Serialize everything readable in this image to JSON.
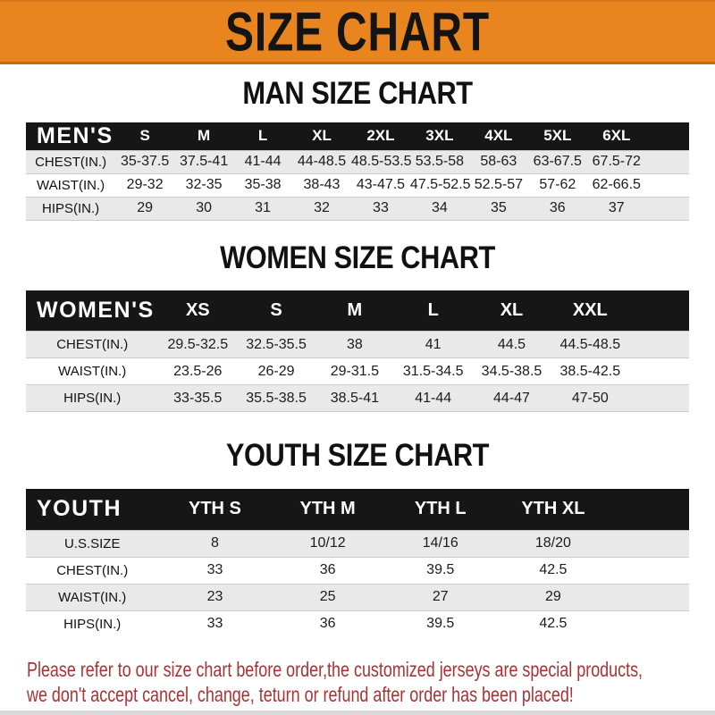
{
  "banner": {
    "title": "SIZE CHART"
  },
  "sections": [
    {
      "title": "MAN SIZE CHART",
      "header_label": "MEN'S",
      "columns": [
        "S",
        "M",
        "L",
        "XL",
        "2XL",
        "3XL",
        "4XL",
        "5XL",
        "6XL"
      ],
      "rows": [
        {
          "label": "CHEST(IN.)",
          "values": [
            "35-37.5",
            "37.5-41",
            "41-44",
            "44-48.5",
            "48.5-53.5",
            "53.5-58",
            "58-63",
            "63-67.5",
            "67.5-72"
          ]
        },
        {
          "label": "WAIST(IN.)",
          "values": [
            "29-32",
            "32-35",
            "35-38",
            "38-43",
            "43-47.5",
            "47.5-52.5",
            "52.5-57",
            "57-62",
            "62-66.5"
          ]
        },
        {
          "label": "HIPS(IN.)",
          "values": [
            "29",
            "30",
            "31",
            "32",
            "33",
            "34",
            "35",
            "36",
            "37"
          ]
        }
      ]
    },
    {
      "title": "WOMEN SIZE CHART",
      "header_label": "WOMEN'S",
      "columns": [
        "XS",
        "S",
        "M",
        "L",
        "XL",
        "XXL"
      ],
      "rows": [
        {
          "label": "CHEST(IN.)",
          "values": [
            "29.5-32.5",
            "32.5-35.5",
            "38",
            "41",
            "44.5",
            "44.5-48.5"
          ]
        },
        {
          "label": "WAIST(IN.)",
          "values": [
            "23.5-26",
            "26-29",
            "29-31.5",
            "31.5-34.5",
            "34.5-38.5",
            "38.5-42.5"
          ]
        },
        {
          "label": "HIPS(IN.)",
          "values": [
            "33-35.5",
            "35.5-38.5",
            "38.5-41",
            "41-44",
            "44-47",
            "47-50"
          ]
        }
      ]
    },
    {
      "title": "YOUTH SIZE CHART",
      "header_label": "YOUTH",
      "columns": [
        "YTH S",
        "YTH M",
        "YTH L",
        "YTH XL"
      ],
      "rows": [
        {
          "label": "U.S.SIZE",
          "values": [
            "8",
            "10/12",
            "14/16",
            "18/20"
          ]
        },
        {
          "label": "CHEST(IN.)",
          "values": [
            "33",
            "36",
            "39.5",
            "42.5"
          ]
        },
        {
          "label": "WAIST(IN.)",
          "values": [
            "23",
            "25",
            "27",
            "29"
          ]
        },
        {
          "label": "HIPS(IN.)",
          "values": [
            "33",
            "36",
            "39.5",
            "42.5"
          ]
        }
      ]
    }
  ],
  "footer": {
    "line1": "Please refer to our size chart before order,the customized jerseys are special products,",
    "line2": "we don't accept cancel, change, teturn or refund after order has been placed!"
  },
  "colors": {
    "banner_orange": "#E8851F",
    "header_black": "#161616",
    "row_gray": "#E9E9E9",
    "footer_red": "#A93334"
  }
}
